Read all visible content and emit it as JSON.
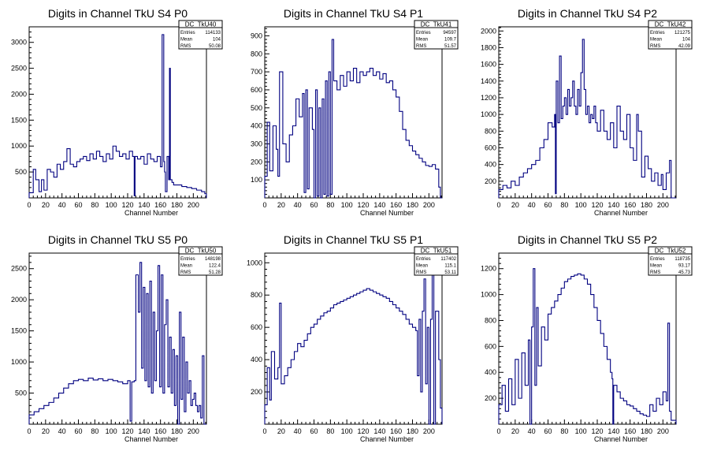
{
  "window": {
    "title": ""
  },
  "colors": {
    "line": "#000080",
    "axis": "#000000",
    "background": "#ffffff"
  },
  "chart_data": [
    {
      "type": "histogram-step",
      "title": "Digits in Channel TkU S4 P0",
      "xlabel": "Channel Number",
      "ylabel": "",
      "xlim": [
        0,
        216
      ],
      "ylim": [
        0,
        3300
      ],
      "xticks": [
        0,
        20,
        40,
        60,
        80,
        100,
        120,
        140,
        160,
        180,
        200
      ],
      "yticks": [
        500,
        1000,
        1500,
        2000,
        2500,
        3000
      ],
      "stats": {
        "name": "DC_TkU40",
        "entries": "114133",
        "mean": "104",
        "rms": "50.08"
      },
      "x": [
        0,
        5,
        8,
        12,
        15,
        18,
        22,
        26,
        30,
        34,
        38,
        42,
        46,
        50,
        54,
        58,
        62,
        66,
        70,
        74,
        78,
        82,
        86,
        90,
        94,
        98,
        102,
        106,
        110,
        114,
        118,
        122,
        126,
        128,
        129,
        132,
        136,
        140,
        144,
        148,
        152,
        156,
        160,
        162,
        164,
        165,
        166,
        168,
        170,
        171,
        172,
        174,
        176,
        180,
        186,
        192,
        198,
        204,
        210,
        214
      ],
      "y": [
        100,
        550,
        350,
        120,
        350,
        150,
        550,
        500,
        400,
        650,
        550,
        700,
        950,
        650,
        600,
        700,
        750,
        800,
        720,
        850,
        750,
        900,
        800,
        700,
        850,
        750,
        1000,
        900,
        800,
        850,
        750,
        900,
        800,
        40,
        800,
        750,
        800,
        650,
        850,
        750,
        700,
        800,
        600,
        3150,
        700,
        500,
        120,
        800,
        350,
        2500,
        350,
        300,
        250,
        250,
        220,
        200,
        180,
        150,
        120,
        80
      ]
    },
    {
      "type": "histogram-step",
      "title": "Digits in Channel TkU S4 P1",
      "xlabel": "Channel Number",
      "ylabel": "",
      "xlim": [
        0,
        216
      ],
      "ylim": [
        0,
        950
      ],
      "xticks": [
        0,
        20,
        40,
        60,
        80,
        100,
        120,
        140,
        160,
        180,
        200
      ],
      "yticks": [
        100,
        200,
        300,
        400,
        500,
        600,
        700,
        800,
        900
      ],
      "stats": {
        "name": "DC_TkU41",
        "entries": "94597",
        "mean": "109.7",
        "rms": "51.57"
      },
      "x": [
        0,
        3,
        6,
        10,
        14,
        16,
        18,
        22,
        26,
        30,
        34,
        38,
        42,
        46,
        48,
        50,
        52,
        54,
        58,
        60,
        62,
        64,
        66,
        68,
        70,
        72,
        74,
        76,
        78,
        80,
        82,
        84,
        88,
        92,
        96,
        100,
        104,
        108,
        112,
        116,
        120,
        124,
        128,
        132,
        136,
        140,
        144,
        148,
        152,
        156,
        160,
        164,
        168,
        172,
        176,
        180,
        184,
        188,
        192,
        196,
        200,
        204,
        208,
        212,
        214
      ],
      "y": [
        120,
        420,
        150,
        400,
        270,
        120,
        700,
        300,
        200,
        350,
        400,
        550,
        450,
        580,
        30,
        600,
        50,
        500,
        380,
        0,
        600,
        10,
        500,
        0,
        550,
        20,
        650,
        10,
        700,
        20,
        880,
        650,
        600,
        680,
        620,
        700,
        650,
        720,
        640,
        700,
        680,
        700,
        720,
        680,
        700,
        660,
        690,
        640,
        650,
        600,
        560,
        480,
        380,
        320,
        290,
        260,
        240,
        220,
        200,
        180,
        175,
        185,
        160,
        60,
        0
      ]
    },
    {
      "type": "histogram-step",
      "title": "Digits in Channel TkU S4 P2",
      "xlabel": "Channel Number",
      "ylabel": "",
      "xlim": [
        0,
        216
      ],
      "ylim": [
        0,
        2050
      ],
      "xticks": [
        0,
        20,
        40,
        60,
        80,
        100,
        120,
        140,
        160,
        180,
        200
      ],
      "yticks": [
        200,
        400,
        600,
        800,
        1000,
        1200,
        1400,
        1600,
        1800,
        2000
      ],
      "stats": {
        "name": "DC_TkU42",
        "entries": "121275",
        "mean": "104",
        "rms": "42.09"
      },
      "x": [
        0,
        5,
        10,
        15,
        20,
        25,
        30,
        35,
        40,
        45,
        50,
        55,
        60,
        65,
        68,
        69,
        70,
        72,
        74,
        76,
        78,
        80,
        82,
        84,
        86,
        88,
        90,
        92,
        94,
        96,
        98,
        100,
        102,
        104,
        106,
        108,
        110,
        112,
        114,
        116,
        118,
        120,
        124,
        128,
        132,
        136,
        140,
        144,
        148,
        152,
        156,
        160,
        164,
        168,
        170,
        174,
        178,
        182,
        186,
        190,
        194,
        198,
        200,
        204,
        208,
        210
      ],
      "y": [
        100,
        150,
        120,
        200,
        150,
        250,
        300,
        350,
        400,
        450,
        600,
        700,
        900,
        850,
        1000,
        50,
        1400,
        900,
        1700,
        950,
        1100,
        1200,
        1000,
        1300,
        1100,
        1200,
        1400,
        1100,
        1000,
        1300,
        1100,
        1500,
        1900,
        1300,
        1000,
        1100,
        900,
        1000,
        950,
        1100,
        900,
        800,
        1050,
        800,
        700,
        900,
        600,
        1100,
        800,
        700,
        1000,
        600,
        450,
        1000,
        800,
        250,
        500,
        350,
        200,
        300,
        150,
        280,
        100,
        300,
        450,
        0
      ]
    },
    {
      "type": "histogram-step",
      "title": "Digits in Channel TkU S5 P0",
      "xlabel": "Channel Number",
      "ylabel": "",
      "xlim": [
        0,
        216
      ],
      "ylim": [
        0,
        2750
      ],
      "xticks": [
        0,
        20,
        40,
        60,
        80,
        100,
        120,
        140,
        160,
        180,
        200
      ],
      "yticks": [
        500,
        1000,
        1500,
        2000,
        2500
      ],
      "stats": {
        "name": "DC_TkU50",
        "entries": "148198",
        "mean": "122.4",
        "rms": "51.28"
      },
      "x": [
        0,
        6,
        12,
        18,
        24,
        30,
        36,
        42,
        48,
        54,
        60,
        66,
        72,
        78,
        84,
        90,
        96,
        102,
        108,
        114,
        120,
        123,
        125,
        128,
        130,
        133,
        135,
        137,
        139,
        141,
        143,
        145,
        147,
        149,
        151,
        153,
        155,
        157,
        159,
        161,
        163,
        165,
        167,
        169,
        171,
        173,
        175,
        177,
        179,
        181,
        183,
        185,
        187,
        189,
        191,
        193,
        195,
        197,
        199,
        201,
        203,
        205,
        207,
        209,
        211,
        213
      ],
      "y": [
        150,
        200,
        250,
        300,
        350,
        420,
        500,
        580,
        650,
        700,
        720,
        700,
        740,
        710,
        730,
        700,
        720,
        700,
        680,
        650,
        700,
        50,
        680,
        700,
        2400,
        1800,
        2600,
        900,
        2200,
        700,
        2100,
        600,
        2300,
        500,
        1800,
        700,
        1500,
        2550,
        600,
        2400,
        500,
        1600,
        2000,
        600,
        1400,
        500,
        1200,
        300,
        1100,
        0,
        1800,
        400,
        1400,
        200,
        1000,
        500,
        700,
        300,
        400,
        500,
        300,
        200,
        300,
        100,
        1100,
        0
      ]
    },
    {
      "type": "histogram-step",
      "title": "Digits in Channel TkU S5 P1",
      "xlabel": "Channel Number",
      "ylabel": "",
      "xlim": [
        0,
        216
      ],
      "ylim": [
        0,
        1060
      ],
      "xticks": [
        0,
        20,
        40,
        60,
        80,
        100,
        120,
        140,
        160,
        180,
        200
      ],
      "yticks": [
        200,
        400,
        600,
        800,
        1000
      ],
      "stats": {
        "name": "DC_TkU51",
        "entries": "117402",
        "mean": "115.1",
        "rms": "53.11"
      },
      "x": [
        0,
        3,
        6,
        8,
        12,
        16,
        18,
        20,
        24,
        28,
        32,
        36,
        40,
        44,
        48,
        52,
        56,
        60,
        64,
        68,
        72,
        76,
        80,
        84,
        88,
        92,
        96,
        100,
        104,
        108,
        112,
        116,
        120,
        124,
        128,
        132,
        136,
        140,
        144,
        148,
        152,
        156,
        160,
        164,
        168,
        172,
        176,
        180,
        184,
        186,
        188,
        190,
        192,
        194,
        196,
        198,
        200,
        202,
        204,
        206,
        208,
        212,
        214
      ],
      "y": [
        120,
        350,
        150,
        450,
        280,
        350,
        750,
        250,
        300,
        350,
        400,
        450,
        500,
        480,
        520,
        560,
        600,
        620,
        650,
        670,
        690,
        700,
        720,
        740,
        750,
        760,
        770,
        780,
        790,
        800,
        810,
        820,
        830,
        840,
        830,
        820,
        810,
        800,
        790,
        780,
        760,
        740,
        720,
        700,
        680,
        650,
        620,
        600,
        580,
        300,
        650,
        200,
        700,
        900,
        250,
        600,
        0,
        650,
        1000,
        0,
        700,
        400,
        100
      ]
    },
    {
      "type": "histogram-step",
      "title": "Digits in Channel TkU S5 P2",
      "xlabel": "Channel Number",
      "ylabel": "",
      "xlim": [
        0,
        216
      ],
      "ylim": [
        0,
        1320
      ],
      "xticks": [
        0,
        20,
        40,
        60,
        80,
        100,
        120,
        140,
        160,
        180,
        200
      ],
      "yticks": [
        200,
        400,
        600,
        800,
        1000,
        1200
      ],
      "stats": {
        "name": "DC_TkU52",
        "entries": "118735",
        "mean": "93.17",
        "rms": "45.73"
      },
      "x": [
        0,
        4,
        8,
        12,
        16,
        20,
        24,
        28,
        32,
        36,
        38,
        40,
        42,
        44,
        46,
        48,
        52,
        56,
        60,
        64,
        68,
        72,
        76,
        80,
        84,
        88,
        92,
        96,
        100,
        104,
        108,
        112,
        116,
        120,
        124,
        128,
        132,
        136,
        138,
        139,
        140,
        144,
        148,
        152,
        156,
        160,
        164,
        168,
        172,
        176,
        180,
        184,
        188,
        192,
        196,
        200,
        204,
        206,
        208,
        210
      ],
      "y": [
        150,
        300,
        100,
        350,
        150,
        500,
        200,
        550,
        300,
        650,
        0,
        750,
        1200,
        300,
        900,
        450,
        750,
        650,
        850,
        900,
        950,
        1000,
        1050,
        1100,
        1120,
        1140,
        1150,
        1160,
        1150,
        1120,
        1080,
        1000,
        900,
        800,
        700,
        600,
        500,
        400,
        350,
        0,
        300,
        250,
        200,
        180,
        150,
        140,
        120,
        100,
        80,
        70,
        60,
        150,
        100,
        200,
        150,
        250,
        180,
        780,
        100,
        30
      ]
    }
  ]
}
